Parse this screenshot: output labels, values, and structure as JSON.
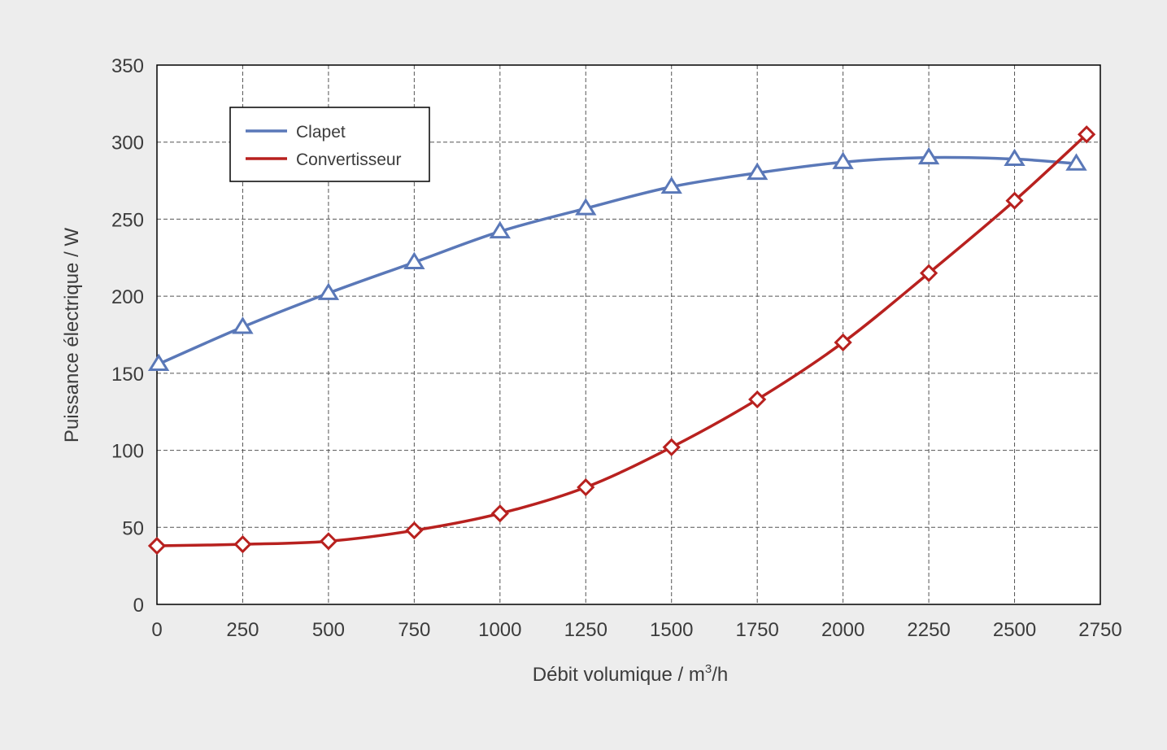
{
  "chart_data": {
    "type": "line",
    "xlabel": "Débit volumique / m",
    "xlabel_sup": "3",
    "xlabel_suffix": "/h",
    "ylabel": "Puissance électrique / W",
    "xlim": [
      0,
      2750
    ],
    "ylim": [
      0,
      350
    ],
    "x_ticks": [
      0,
      250,
      500,
      750,
      1000,
      1250,
      1500,
      1750,
      2000,
      2250,
      2500,
      2750
    ],
    "y_ticks": [
      0,
      50,
      100,
      150,
      200,
      250,
      300,
      350
    ],
    "grid": true,
    "legend_position": "top-left",
    "series": [
      {
        "name": "Clapet",
        "color": "#5a78b8",
        "marker": "triangle",
        "x": [
          5,
          250,
          500,
          750,
          1000,
          1250,
          1500,
          1750,
          2000,
          2250,
          2500,
          2680
        ],
        "y": [
          156,
          180,
          202,
          222,
          242,
          257,
          271,
          280,
          287,
          290,
          289,
          286
        ]
      },
      {
        "name": "Convertisseur",
        "color": "#b8211f",
        "marker": "diamond",
        "x": [
          0,
          250,
          500,
          750,
          1000,
          1250,
          1500,
          1750,
          2000,
          2250,
          2500,
          2710
        ],
        "y": [
          38,
          39,
          41,
          48,
          59,
          76,
          102,
          133,
          170,
          215,
          262,
          305
        ]
      }
    ]
  }
}
